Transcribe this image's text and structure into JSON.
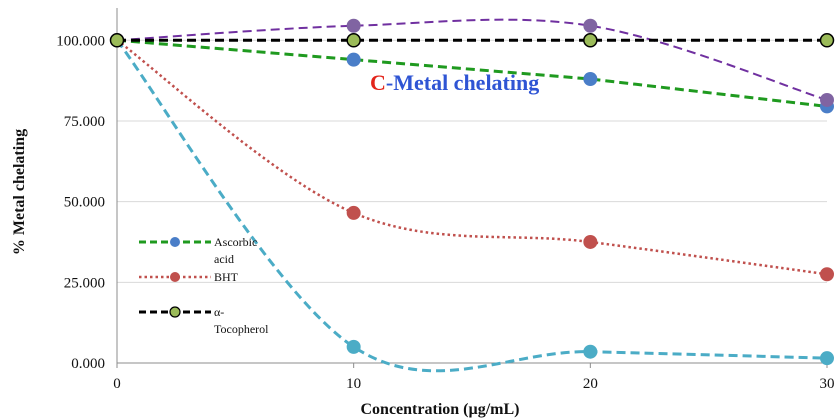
{
  "chart_data": {
    "type": "line",
    "title_prefix": "C",
    "title_main": "-Metal chelating",
    "xlabel": "Concentration (µg/mL)",
    "ylabel": "% Metal chelating",
    "x": [
      0,
      10,
      20,
      30
    ],
    "xticks": [
      "0",
      "10",
      "20",
      "30"
    ],
    "ylim": [
      0,
      110
    ],
    "yticks": [
      0,
      25,
      50,
      75,
      100
    ],
    "ytick_labels": [
      "0.000",
      "25.000",
      "50.000",
      "75.000",
      "100.000"
    ],
    "grid": "horizontal",
    "legend_position": "left",
    "series": [
      {
        "name": "Ascorbic acid",
        "values": [
          100,
          94,
          88,
          79.5
        ],
        "line_color": "#1f9a1f",
        "marker_color": "#4a7ec8",
        "dash": "dashed",
        "smooth": false,
        "in_legend": true,
        "legend_lines": [
          "Ascorbic",
          "acid"
        ]
      },
      {
        "name": "BHT",
        "values": [
          100,
          46.5,
          37.5,
          27.5
        ],
        "line_color": "#c0504d",
        "marker_color": "#c0504d",
        "dash": "dotted",
        "smooth": true,
        "in_legend": true,
        "legend_lines": [
          "BHT"
        ]
      },
      {
        "name": "α-Tocopherol",
        "values": [
          100,
          100,
          100,
          100
        ],
        "line_color": "#000000",
        "marker_color": "#9bbb59",
        "dash": "dashed",
        "smooth": false,
        "in_legend": true,
        "legend_lines": [
          "α-",
          "Tocopherol"
        ]
      },
      {
        "name": "",
        "values": [
          100,
          104.5,
          104.5,
          81.5
        ],
        "line_color": "#7030a0",
        "marker_color": "#8064a2",
        "dash": "dashed",
        "smooth": true,
        "in_legend": false,
        "legend_lines": []
      },
      {
        "name": "",
        "values": [
          100,
          5,
          3.5,
          1.5
        ],
        "line_color": "#4bacc6",
        "marker_color": "#4bacc6",
        "dash": "dashed",
        "smooth": true,
        "in_legend": false,
        "legend_lines": []
      }
    ],
    "title_colors": {
      "prefix": "#e3251b",
      "main": "#2f55d4"
    }
  }
}
